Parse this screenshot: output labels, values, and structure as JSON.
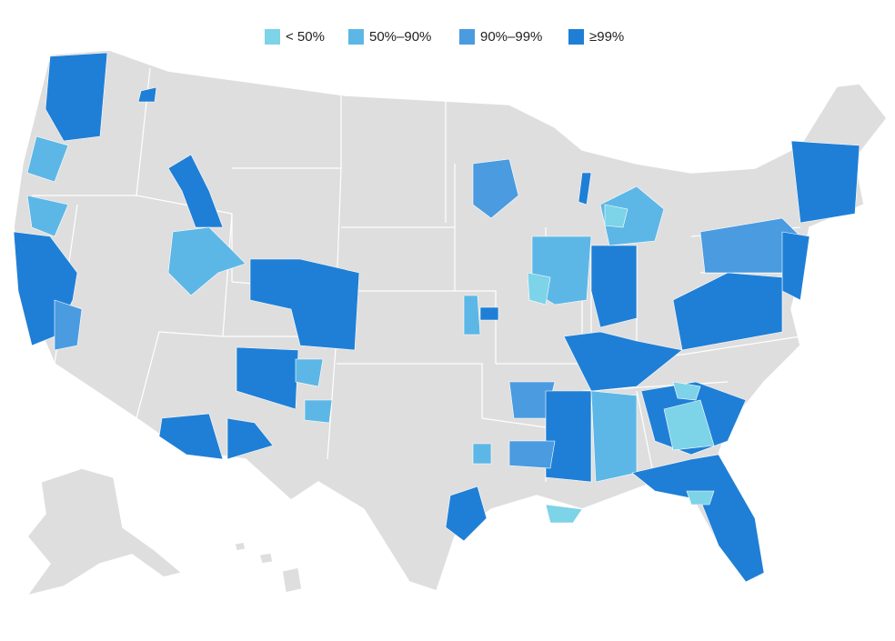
{
  "legend": {
    "items": [
      {
        "label": "< 50%",
        "color": "#7dd3e8"
      },
      {
        "label": "50%–90%",
        "color": "#5db7e6"
      },
      {
        "label": "90%–99%",
        "color": "#4a9be0"
      },
      {
        "label": "≥99%",
        "color": "#1f7fd6"
      }
    ]
  }
}
